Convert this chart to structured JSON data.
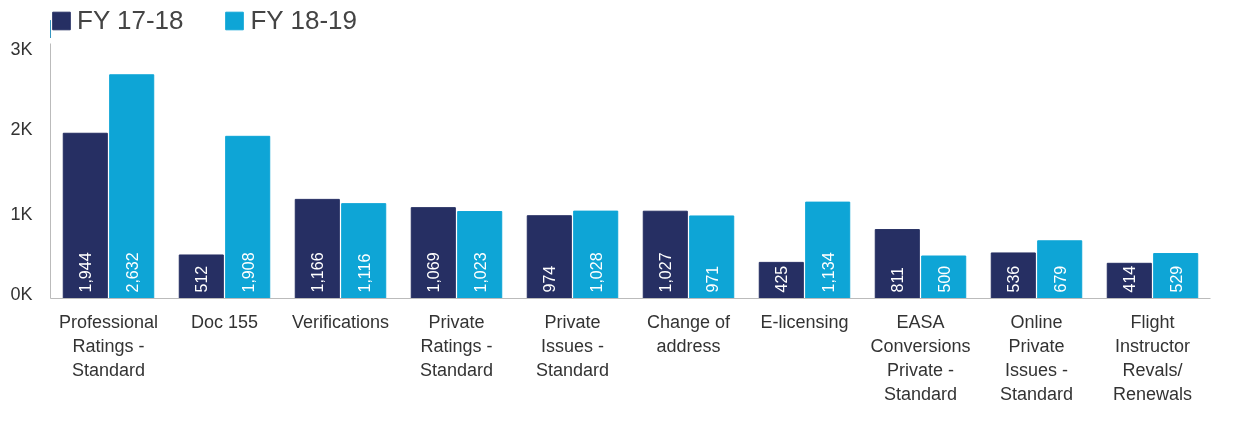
{
  "chart_data": {
    "type": "bar",
    "categories": [
      "Professional Ratings - Standard",
      "Doc 155",
      "Verifications",
      "Private Ratings - Standard",
      "Private Issues - Standard",
      "Change of address",
      "E-licensing",
      "EASA Conversions Private - Standard",
      "Online Private Issues - Standard",
      "Flight Instructor Revals/ Renewals"
    ],
    "series": [
      {
        "name": "FY 17-18",
        "color": "#262f63",
        "values": [
          1944,
          512,
          1166,
          1069,
          974,
          1027,
          425,
          811,
          536,
          414
        ],
        "value_labels": [
          "1,944",
          "512",
          "1,166",
          "1,069",
          "974",
          "1,027",
          "425",
          "811",
          "536",
          "414"
        ]
      },
      {
        "name": "FY 18-19",
        "color": "#0ea5d6",
        "values": [
          2632,
          1908,
          1116,
          1023,
          1028,
          971,
          1134,
          500,
          679,
          529
        ],
        "value_labels": [
          "2,632",
          "1,908",
          "1,116",
          "1,023",
          "1,028",
          "971",
          "1,134",
          "500",
          "679",
          "529"
        ]
      }
    ],
    "ylim": [
      0,
      3000
    ],
    "yticks": [
      {
        "value": 0,
        "label": "0K"
      },
      {
        "value": 1000,
        "label": "1K"
      },
      {
        "value": 2000,
        "label": "2K"
      },
      {
        "value": 3000,
        "label": "3K"
      }
    ],
    "grid": false,
    "legend": "top left"
  }
}
